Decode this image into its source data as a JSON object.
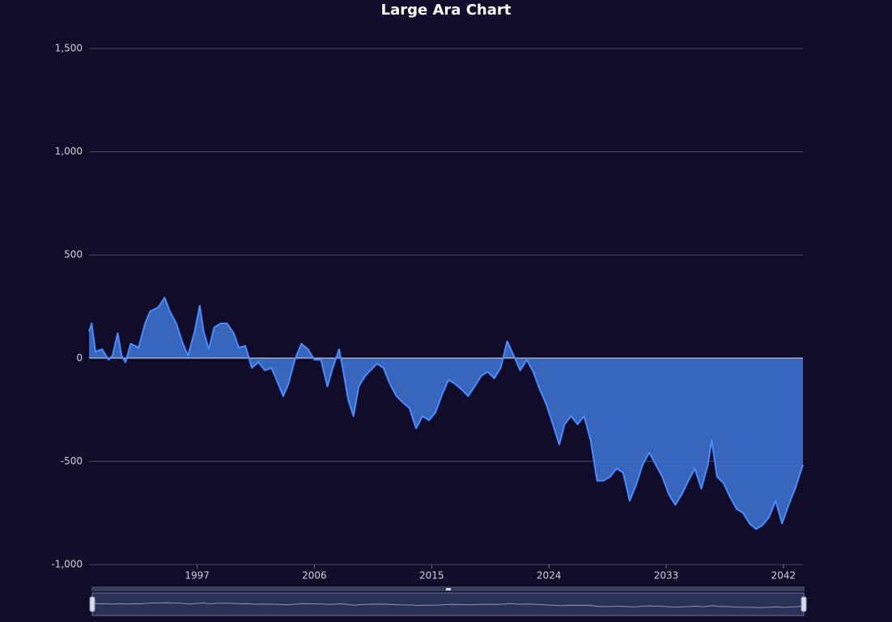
{
  "chart_data": {
    "type": "area",
    "title": "Large Ara Chart",
    "color": "#4a8dff",
    "area_color": "#3a6cc4",
    "grid": true,
    "xlim": [
      1988.7,
      2043.5
    ],
    "xticks": [
      1997,
      2006,
      2015,
      2024,
      2033,
      2042
    ],
    "ylim": [
      -1000,
      1500
    ],
    "yticks": [
      {
        "value": -1000,
        "label": "-1,000"
      },
      -500,
      0,
      500,
      {
        "value": 1000,
        "label": "1,000"
      },
      {
        "value": 1500,
        "label": "1,500"
      }
    ],
    "x": [
      1988.7,
      1988.9,
      1989.2,
      1989.7,
      1990.2,
      1990.5,
      1990.9,
      1991.2,
      1991.5,
      1991.9,
      1992.5,
      1993.0,
      1993.4,
      1994.0,
      1994.5,
      1994.9,
      1995.4,
      1995.9,
      1996.3,
      1996.8,
      1997.2,
      1997.5,
      1997.9,
      1998.3,
      1998.8,
      1999.3,
      1999.8,
      2000.2,
      2000.7,
      2001.2,
      2001.7,
      2002.2,
      2002.7,
      2003.1,
      2003.6,
      2004.0,
      2004.5,
      2005.0,
      2005.5,
      2006.0,
      2006.5,
      2007.0,
      2007.4,
      2007.9,
      2008.2,
      2008.6,
      2009.0,
      2009.4,
      2009.9,
      2010.3,
      2010.8,
      2011.3,
      2011.8,
      2012.3,
      2012.8,
      2013.3,
      2013.8,
      2014.3,
      2014.8,
      2015.3,
      2015.8,
      2016.3,
      2016.8,
      2017.3,
      2017.8,
      2018.3,
      2018.8,
      2019.3,
      2019.8,
      2020.3,
      2020.8,
      2021.3,
      2021.8,
      2022.3,
      2022.8,
      2023.3,
      2023.8,
      2024.3,
      2024.8,
      2025.2,
      2025.7,
      2026.2,
      2026.7,
      2027.2,
      2027.7,
      2028.2,
      2028.7,
      2029.2,
      2029.7,
      2030.2,
      2030.7,
      2031.2,
      2031.7,
      2032.2,
      2032.7,
      2033.2,
      2033.7,
      2034.2,
      2034.7,
      2035.2,
      2035.7,
      2036.2,
      2036.5,
      2036.9,
      2037.4,
      2037.9,
      2038.4,
      2038.9,
      2039.4,
      2039.9,
      2040.4,
      2040.9,
      2041.4,
      2041.9,
      2042.4,
      2042.9,
      2043.4,
      2043.5
    ],
    "values": [
      129,
      168,
      31,
      43,
      -8,
      12,
      121,
      12,
      -20,
      70,
      51,
      168,
      227,
      246,
      293,
      227,
      168,
      70,
      12,
      129,
      254,
      129,
      43,
      148,
      168,
      168,
      121,
      51,
      59,
      -47,
      -20,
      -59,
      -47,
      -105,
      -184,
      -125,
      -8,
      70,
      43,
      -8,
      -8,
      -137,
      -47,
      43,
      -59,
      -203,
      -281,
      -137,
      -86,
      -59,
      -27,
      -47,
      -125,
      -184,
      -215,
      -242,
      -340,
      -281,
      -301,
      -262,
      -176,
      -105,
      -125,
      -152,
      -184,
      -137,
      -86,
      -66,
      -98,
      -47,
      82,
      12,
      -59,
      -8,
      -66,
      -152,
      -223,
      -320,
      -418,
      -320,
      -281,
      -320,
      -281,
      -398,
      -594,
      -594,
      -574,
      -535,
      -555,
      -691,
      -613,
      -516,
      -457,
      -516,
      -574,
      -660,
      -711,
      -660,
      -594,
      -535,
      -633,
      -516,
      -398,
      -574,
      -605,
      -672,
      -730,
      -750,
      -801,
      -828,
      -809,
      -770,
      -691,
      -801,
      -711,
      -633,
      -535,
      -516
    ]
  }
}
